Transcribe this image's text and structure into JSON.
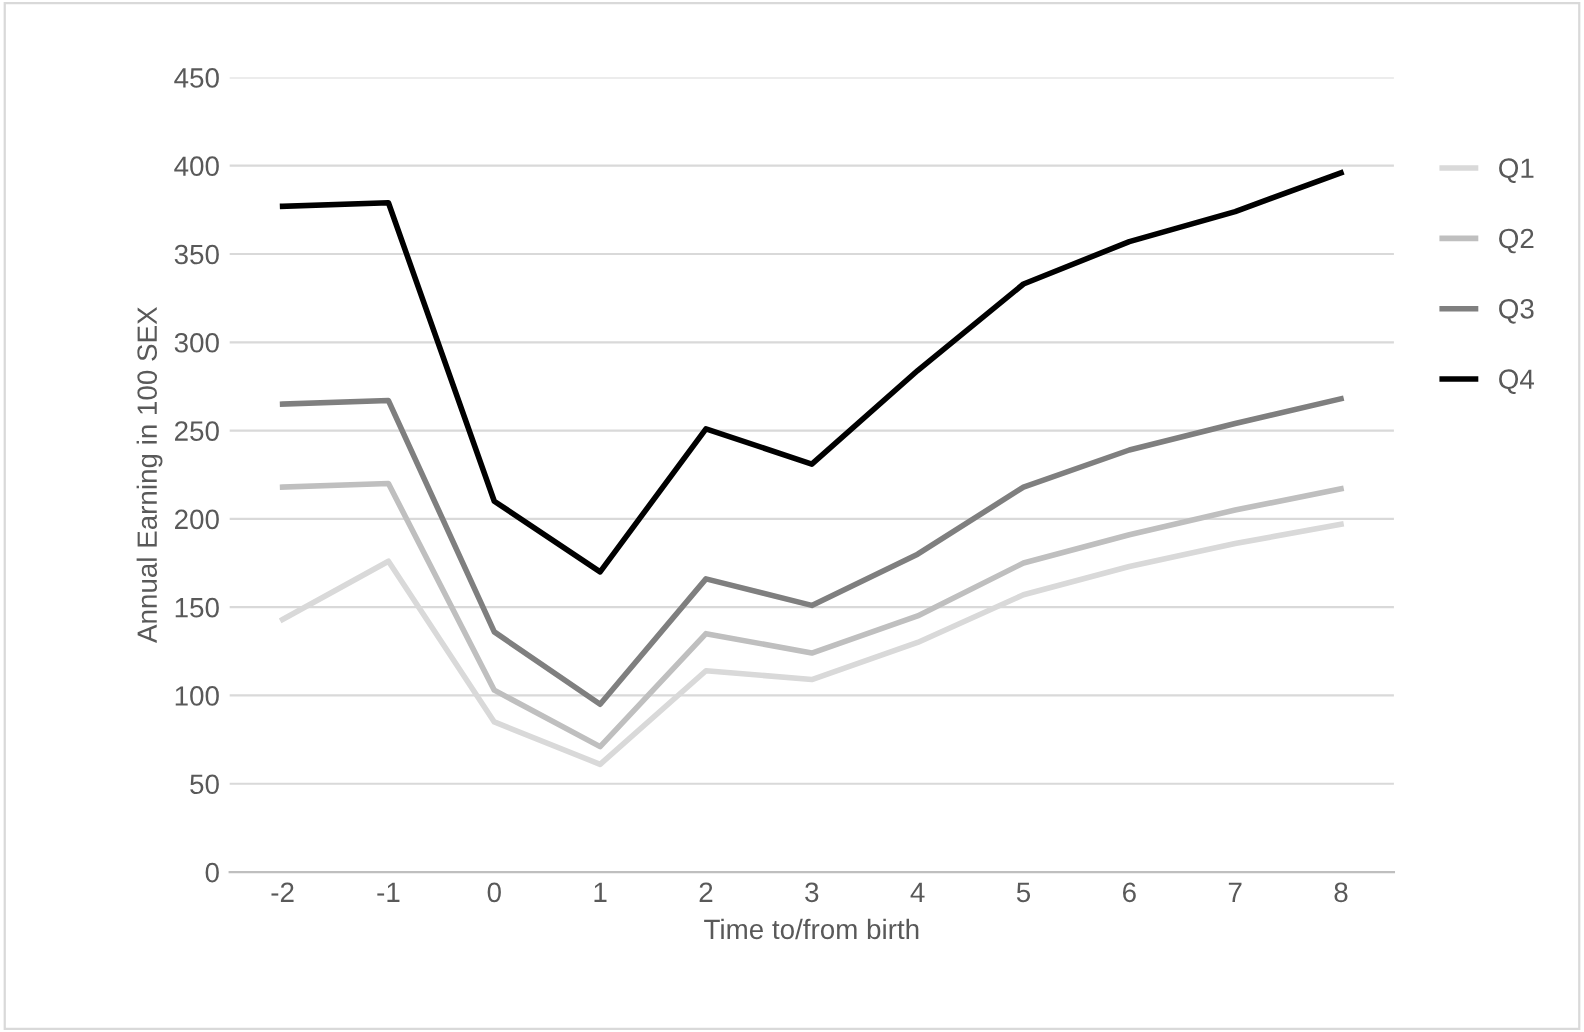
{
  "chart_data": {
    "type": "line",
    "xlabel": "Time to/from birth",
    "ylabel": "Annual Earning in 100 SEX",
    "categories": [
      "-2",
      "-1",
      "0",
      "1",
      "2",
      "3",
      "4",
      "5",
      "6",
      "7",
      "8"
    ],
    "series": [
      {
        "name": "Q1",
        "color": "#d9d9d9",
        "values": [
          143,
          176,
          85,
          61,
          114,
          109,
          130,
          157,
          173,
          186,
          197
        ]
      },
      {
        "name": "Q2",
        "color": "#bfbfbf",
        "values": [
          218,
          220,
          103,
          71,
          135,
          124,
          145,
          175,
          191,
          205,
          217
        ]
      },
      {
        "name": "Q3",
        "color": "#7f7f7f",
        "values": [
          265,
          267,
          136,
          95,
          166,
          151,
          180,
          218,
          239,
          254,
          268
        ]
      },
      {
        "name": "Q4",
        "color": "#000000",
        "values": [
          377,
          379,
          210,
          170,
          251,
          231,
          284,
          333,
          357,
          374,
          396
        ]
      }
    ],
    "ylim": [
      0,
      450
    ],
    "yticks": [
      0,
      50,
      100,
      150,
      200,
      250,
      300,
      350,
      400,
      450
    ],
    "grid": "y",
    "legend": "right",
    "marker": "none",
    "line_style": "solid"
  }
}
